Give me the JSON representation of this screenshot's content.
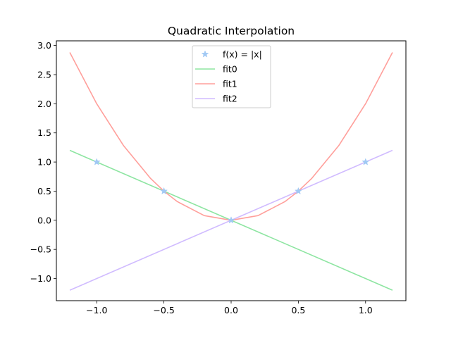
{
  "chart_data": {
    "type": "line",
    "title": "Quadratic Interpolation",
    "xlabel": "",
    "ylabel": "",
    "xlim": [
      -1.3,
      1.3
    ],
    "ylim": [
      -1.38,
      3.08
    ],
    "xticks": [
      -1.0,
      -0.5,
      0.0,
      0.5,
      1.0
    ],
    "xtick_labels": [
      "−1.0",
      "−0.5",
      "0.0",
      "0.5",
      "1.0"
    ],
    "yticks": [
      -1.0,
      -0.5,
      0.0,
      0.5,
      1.0,
      1.5,
      2.0,
      2.5,
      3.0
    ],
    "ytick_labels": [
      "−1.0",
      "−0.5",
      "0.0",
      "0.5",
      "1.0",
      "1.5",
      "2.0",
      "2.5",
      "3.0"
    ],
    "grid": false,
    "legend_position": "top-center",
    "series": [
      {
        "name": "f(x) = |x|",
        "kind": "markers",
        "marker": "star",
        "color": "#a1c9f4",
        "x": [
          -1.0,
          -0.5,
          0.0,
          0.5,
          1.0
        ],
        "y": [
          1.0,
          0.5,
          0.0,
          0.5,
          1.0
        ]
      },
      {
        "name": "fit0",
        "kind": "line",
        "color": "#8de5a1",
        "x": [
          -1.2,
          1.2
        ],
        "y": [
          1.2,
          -1.2
        ]
      },
      {
        "name": "fit1",
        "kind": "line",
        "color": "#ff9f9b",
        "x": [
          -1.2,
          -1.0,
          -0.8,
          -0.6,
          -0.5,
          -0.4,
          -0.2,
          0.0,
          0.2,
          0.4,
          0.5,
          0.6,
          0.8,
          1.0,
          1.2
        ],
        "y": [
          2.88,
          2.0,
          1.28,
          0.72,
          0.5,
          0.32,
          0.08,
          0.0,
          0.08,
          0.32,
          0.5,
          0.72,
          1.28,
          2.0,
          2.88
        ]
      },
      {
        "name": "fit2",
        "kind": "line",
        "color": "#d0bbff",
        "x": [
          -1.2,
          1.2
        ],
        "y": [
          -1.2,
          1.2
        ]
      }
    ]
  }
}
